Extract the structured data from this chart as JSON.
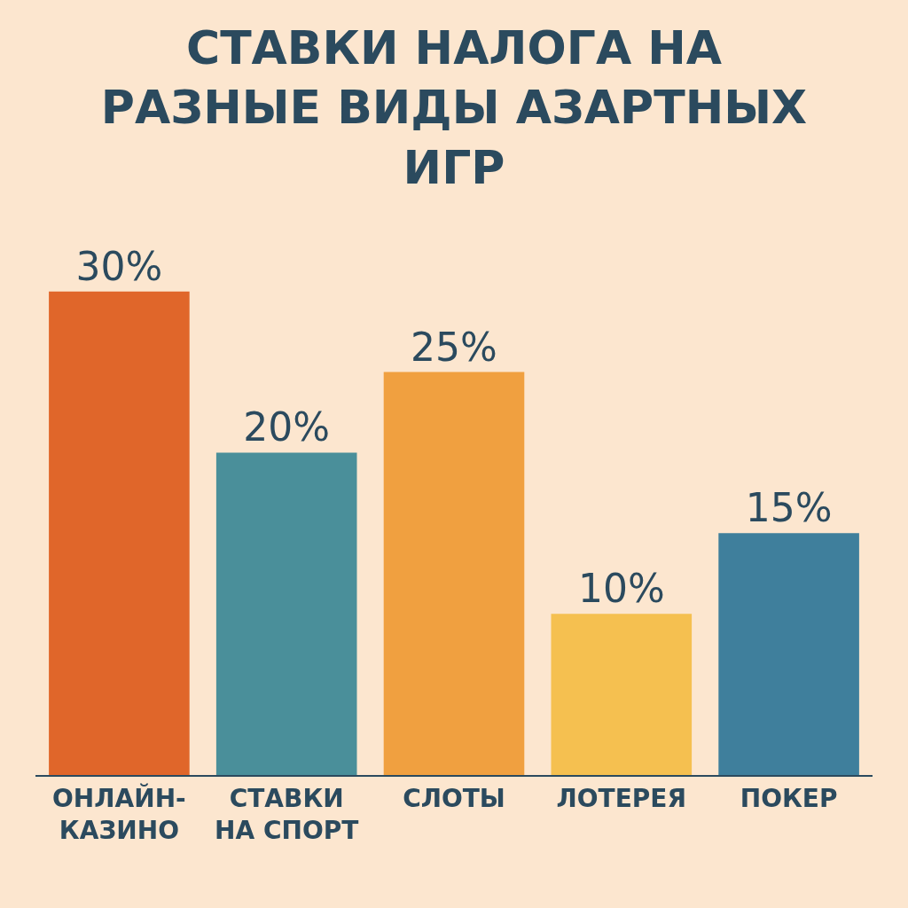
{
  "chart_data": {
    "type": "bar",
    "title": "СТАВКИ НАЛОГА НА\nРАЗНЫЕ ВИДЫ АЗАРТНЫХ\nИГР",
    "categories": [
      "ОНЛАЙН-\nКАЗИНО",
      "СТАВКИ\nНА СПОРТ",
      "СЛОТЫ",
      "ЛОТЕРЕЯ",
      "ПОКЕР"
    ],
    "values": [
      30,
      20,
      25,
      10,
      15
    ],
    "colors": [
      "#e0662a",
      "#4a8f9a",
      "#f0a040",
      "#f5c050",
      "#3f7f9c"
    ],
    "value_labels": [
      "30%",
      "20%",
      "25%",
      "10%",
      "15%"
    ],
    "grid": false,
    "legend": false
  }
}
